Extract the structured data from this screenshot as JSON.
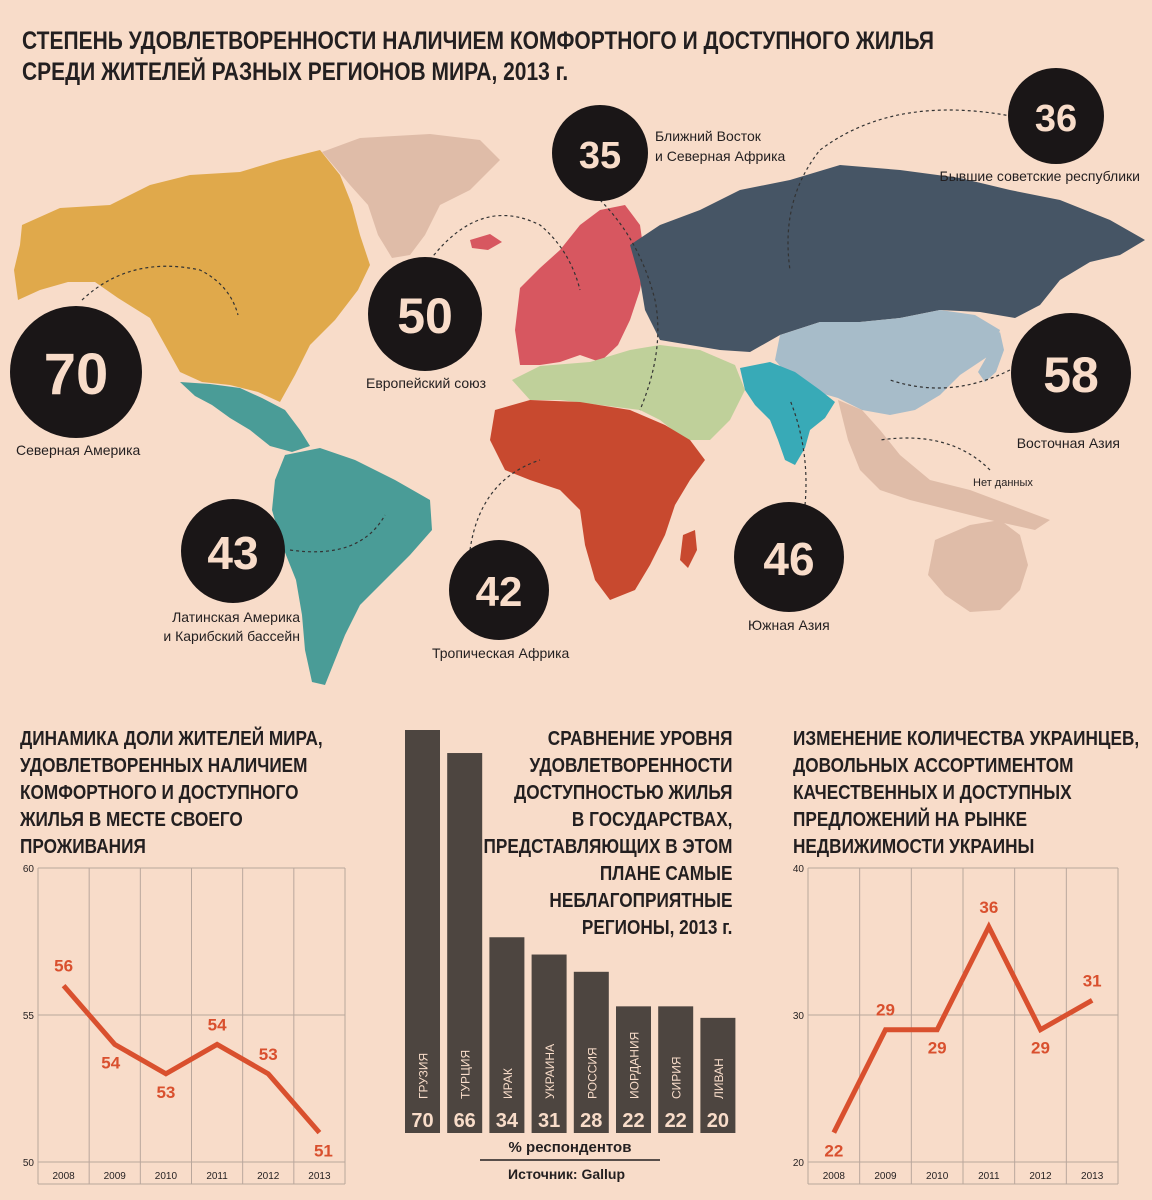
{
  "title": {
    "line1": "СТЕПЕНЬ УДОВЛЕТВОРЕННОСТИ НАЛИЧИЕМ КОМФОРТНОГО И ДОСТУПНОГО ЖИЛЬЯ",
    "line2": "СРЕДИ ЖИТЕЛЕЙ РАЗНЫХ РЕГИОНОВ МИРА, 2013 г."
  },
  "regions": [
    {
      "name": "Северная Америка",
      "value": "70",
      "color": "#e0a94b"
    },
    {
      "name": "Европейский союз",
      "value": "50",
      "color": "#d75760"
    },
    {
      "name": "Ближний Восток и Северная Африка",
      "value": "35",
      "color": "#bfd09a"
    },
    {
      "name": "Бывшие советские республики",
      "value": "36",
      "color": "#465565"
    },
    {
      "name": "Восточная Азия",
      "value": "58",
      "color": "#a7bcc9"
    },
    {
      "name": "Латинская Америка и Карибский бассейн",
      "value": "43",
      "color": "#4a9c97"
    },
    {
      "name": "Тропическая Африка",
      "value": "42",
      "color": "#c8492f"
    },
    {
      "name": "Южная Азия",
      "value": "46",
      "color": "#38aab7"
    },
    {
      "name": "Нет данных",
      "value": "",
      "color": "#dfbca8"
    }
  ],
  "map_labels": {
    "na_line1": "Северная Америка",
    "eu_line1": "Европейский союз",
    "me_line1": "Ближний Восток",
    "me_line2": "и Северная Африка",
    "fsu_line1": "Бывшие советские республики",
    "ea_line1": "Восточная Азия",
    "la_line1": "Латинская Америка",
    "la_line2": "и Карибский бассейн",
    "af_line1": "Тропическая Африка",
    "sa_line1": "Южная Азия",
    "nodata": "Нет данных"
  },
  "left_chart": {
    "title_lines": [
      "ДИНАМИКА ДОЛИ ЖИТЕЛЕЙ МИРА,",
      "УДОВЛЕТВОРЕННЫХ НАЛИЧИЕМ",
      "КОМФОРТНОГО И ДОСТУПНОГО",
      "ЖИЛЬЯ В МЕСТЕ СВОЕГО",
      "ПРОЖИВАНИЯ"
    ]
  },
  "middle_chart": {
    "title_lines": [
      "СРАВНЕНИЕ УРОВНЯ",
      "УДОВЛЕТВОРЕННОСТИ",
      "ДОСТУПНОСТЬЮ ЖИЛЬЯ",
      "В ГОСУДАРСТВАХ,",
      "ПРЕДСТАВЛЯЮЩИХ В ЭТОМ",
      "ПЛАНЕ САМЫЕ",
      "НЕБЛАГОПРИЯТНЫЕ",
      "РЕГИОНЫ, 2013 г."
    ],
    "xlabel": "% респондентов",
    "source": "Источник: Gallup"
  },
  "right_chart": {
    "title_lines": [
      "ИЗМЕНЕНИЕ КОЛИЧЕСТВА УКРАИНЦЕВ,",
      "ДОВОЛЬНЫХ АССОРТИМЕНТОМ",
      "КАЧЕСТВЕННЫХ И ДОСТУПНЫХ",
      "ПРЕДЛОЖЕНИЙ НА РЫНКЕ",
      "НЕДВИЖИМОСТИ УКРАИНЫ"
    ]
  },
  "chart_data": [
    {
      "type": "line",
      "x": [
        "2008",
        "2009",
        "2010",
        "2011",
        "2012",
        "2013"
      ],
      "values": [
        56,
        54,
        53,
        54,
        53,
        51
      ],
      "ylim": [
        50,
        60
      ],
      "yticks": [
        50,
        55,
        60
      ],
      "color": "#d9502e",
      "grid": true
    },
    {
      "type": "bar",
      "categories": [
        "ГРУЗИЯ",
        "ТУРЦИЯ",
        "ИРАК",
        "УКРАИНА",
        "РОССИЯ",
        "ИОРДАНИЯ",
        "СИРИЯ",
        "ЛИВАН"
      ],
      "values": [
        70,
        66,
        34,
        31,
        28,
        22,
        22,
        20
      ],
      "xlabel": "% респондентов",
      "color": "#4d4540"
    },
    {
      "type": "line",
      "x": [
        "2008",
        "2009",
        "2010",
        "2011",
        "2012",
        "2013"
      ],
      "values": [
        22,
        29,
        29,
        36,
        29,
        31
      ],
      "ylim": [
        20,
        40
      ],
      "yticks": [
        20,
        30,
        40
      ],
      "color": "#d9502e",
      "grid": true
    }
  ]
}
